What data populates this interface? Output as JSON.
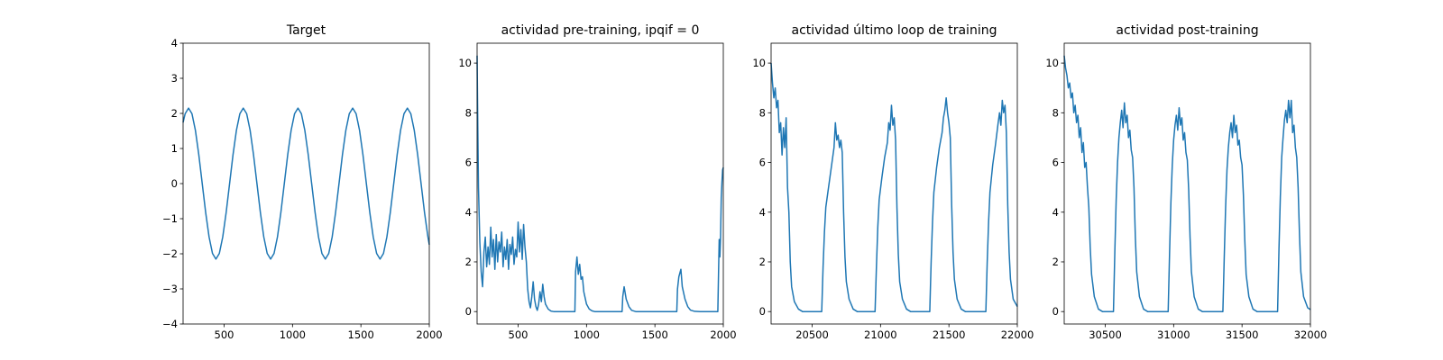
{
  "chart_data": [
    {
      "type": "line",
      "title": "Target",
      "color": "#1f77b4",
      "xlim": [
        200,
        2000
      ],
      "xticks": [
        500,
        1000,
        1500,
        2000
      ],
      "ylim": [
        -4,
        4
      ],
      "yticks": [
        {
          "value": -4,
          "label": "−4"
        },
        {
          "value": -3,
          "label": "−3"
        },
        {
          "value": -2,
          "label": "−2"
        },
        {
          "value": -1,
          "label": "−1"
        },
        0,
        1,
        2,
        3,
        4
      ],
      "x": [
        200,
        215,
        240,
        265,
        290,
        315,
        340,
        365,
        390,
        415,
        440,
        465,
        490,
        515,
        540,
        565,
        590,
        615,
        640,
        665,
        690,
        715,
        740,
        765,
        790,
        815,
        840,
        865,
        890,
        915,
        940,
        965,
        990,
        1015,
        1040,
        1065,
        1090,
        1115,
        1140,
        1165,
        1190,
        1215,
        1240,
        1265,
        1290,
        1315,
        1340,
        1365,
        1390,
        1415,
        1440,
        1465,
        1490,
        1515,
        1540,
        1565,
        1590,
        1615,
        1640,
        1665,
        1690,
        1715,
        1740,
        1765,
        1790,
        1815,
        1840,
        1865,
        1890,
        1915,
        1940,
        1965,
        1990,
        2000
      ],
      "values": [
        1.74,
        1.99,
        2.15,
        1.99,
        1.52,
        0.82,
        0,
        -0.82,
        -1.52,
        -1.99,
        -2.15,
        -1.99,
        -1.52,
        -0.82,
        0,
        0.82,
        1.52,
        1.99,
        2.15,
        1.99,
        1.52,
        0.82,
        0,
        -0.82,
        -1.52,
        -1.99,
        -2.15,
        -1.99,
        -1.52,
        -0.82,
        0,
        0.82,
        1.52,
        1.99,
        2.15,
        1.99,
        1.52,
        0.82,
        0,
        -0.82,
        -1.52,
        -1.99,
        -2.15,
        -1.99,
        -1.52,
        -0.82,
        0,
        0.82,
        1.52,
        1.99,
        2.15,
        1.99,
        1.52,
        0.82,
        0,
        -0.82,
        -1.52,
        -1.99,
        -2.15,
        -1.99,
        -1.52,
        -0.82,
        0,
        0.82,
        1.52,
        1.99,
        2.15,
        1.99,
        1.52,
        0.82,
        0,
        -0.82,
        -1.52,
        -1.74
      ]
    },
    {
      "type": "line",
      "title": "actividad pre-training, ipqif = 0",
      "color": "#1f77b4",
      "xlim": [
        200,
        2000
      ],
      "xticks": [
        500,
        1000,
        1500,
        2000
      ],
      "ylim": [
        -0.5,
        10.8
      ],
      "yticks": [
        0,
        2,
        4,
        6,
        8,
        10
      ],
      "x": [
        200,
        205,
        210,
        220,
        230,
        240,
        250,
        260,
        270,
        280,
        290,
        300,
        310,
        320,
        330,
        340,
        350,
        360,
        370,
        380,
        390,
        400,
        410,
        420,
        430,
        440,
        450,
        460,
        470,
        480,
        490,
        500,
        510,
        520,
        530,
        540,
        550,
        560,
        570,
        580,
        590,
        600,
        610,
        620,
        630,
        640,
        650,
        660,
        670,
        680,
        690,
        700,
        720,
        740,
        760,
        780,
        800,
        850,
        900,
        915,
        920,
        930,
        940,
        950,
        960,
        970,
        980,
        1000,
        1020,
        1040,
        1060,
        1080,
        1100,
        1150,
        1200,
        1260,
        1265,
        1275,
        1290,
        1310,
        1330,
        1360,
        1400,
        1500,
        1600,
        1660,
        1665,
        1675,
        1690,
        1700,
        1720,
        1740,
        1760,
        1790,
        1830,
        1900,
        1960,
        1965,
        1970,
        1975,
        1980,
        1985,
        1990,
        1995,
        2000
      ],
      "values": [
        10.3,
        7.5,
        5.0,
        2.8,
        1.6,
        1.0,
        2.4,
        3.0,
        1.8,
        2.6,
        1.9,
        3.4,
        2.2,
        2.9,
        1.7,
        3.1,
        2.0,
        2.8,
        2.4,
        3.2,
        1.8,
        2.6,
        2.1,
        2.9,
        1.7,
        2.7,
        2.3,
        3.0,
        1.9,
        2.5,
        2.2,
        3.6,
        2.4,
        3.3,
        2.1,
        3.5,
        2.6,
        2.0,
        0.9,
        0.4,
        0.15,
        0.6,
        1.2,
        0.5,
        0.2,
        0.05,
        0.3,
        0.8,
        0.4,
        1.1,
        0.6,
        0.3,
        0.1,
        0.02,
        0,
        0,
        0,
        0,
        0,
        0,
        1.6,
        2.2,
        1.5,
        1.9,
        1.3,
        1.4,
        0.8,
        0.3,
        0.1,
        0.03,
        0,
        0,
        0,
        0,
        0,
        0,
        0.6,
        1.0,
        0.5,
        0.2,
        0.05,
        0,
        0,
        0,
        0,
        0,
        0.9,
        1.4,
        1.7,
        1.0,
        0.5,
        0.2,
        0.06,
        0.01,
        0,
        0,
        0,
        1.5,
        2.9,
        2.2,
        3.0,
        4.6,
        5.2,
        5.7,
        5.8
      ]
    },
    {
      "type": "line",
      "title": "actividad último loop de training",
      "color": "#1f77b4",
      "xlim": [
        20200,
        22000
      ],
      "xticks": [
        20500,
        21000,
        21500,
        22000
      ],
      "ylim": [
        -0.5,
        10.8
      ],
      "yticks": [
        0,
        2,
        4,
        6,
        8,
        10
      ],
      "x": [
        20200,
        20210,
        20220,
        20230,
        20240,
        20250,
        20260,
        20270,
        20280,
        20290,
        20300,
        20310,
        20320,
        20330,
        20340,
        20350,
        20370,
        20400,
        20430,
        20570,
        20580,
        20590,
        20600,
        20620,
        20640,
        20660,
        20670,
        20680,
        20690,
        20700,
        20710,
        20720,
        20730,
        20740,
        20750,
        20770,
        20800,
        20830,
        20960,
        20970,
        20980,
        20990,
        21010,
        21030,
        21050,
        21060,
        21070,
        21080,
        21090,
        21100,
        21110,
        21120,
        21130,
        21140,
        21160,
        21190,
        21220,
        21360,
        21370,
        21380,
        21390,
        21410,
        21430,
        21450,
        21460,
        21470,
        21480,
        21490,
        21500,
        21510,
        21520,
        21530,
        21540,
        21560,
        21590,
        21620,
        21770,
        21780,
        21790,
        21800,
        21820,
        21840,
        21860,
        21870,
        21880,
        21890,
        21900,
        21910,
        21920,
        21930,
        21940,
        21950,
        21970,
        22000
      ],
      "values": [
        10.0,
        9.2,
        8.6,
        9.0,
        8.2,
        8.5,
        7.2,
        7.6,
        6.3,
        7.4,
        6.6,
        7.8,
        5.0,
        4.0,
        2.0,
        1.0,
        0.4,
        0.1,
        0,
        0,
        1.8,
        3.2,
        4.2,
        5.0,
        5.8,
        6.6,
        7.6,
        6.9,
        7.1,
        6.6,
        6.9,
        6.4,
        4.0,
        2.2,
        1.2,
        0.5,
        0.1,
        0,
        0,
        1.8,
        3.4,
        4.5,
        5.4,
        6.2,
        6.8,
        7.6,
        7.3,
        8.3,
        7.5,
        7.8,
        6.9,
        4.2,
        2.3,
        1.2,
        0.5,
        0.1,
        0,
        0,
        2.0,
        3.6,
        4.8,
        5.8,
        6.6,
        7.2,
        7.8,
        8.1,
        8.6,
        8.0,
        7.6,
        7.0,
        4.3,
        2.4,
        1.3,
        0.5,
        0.1,
        0,
        0,
        2.0,
        3.6,
        4.8,
        5.9,
        6.7,
        7.6,
        8.0,
        7.5,
        8.5,
        8.0,
        8.3,
        7.2,
        4.3,
        2.4,
        1.3,
        0.5,
        0.2
      ]
    },
    {
      "type": "line",
      "title": "actividad post-training",
      "color": "#1f77b4",
      "xlim": [
        30200,
        32000
      ],
      "xticks": [
        30500,
        31000,
        31500,
        32000
      ],
      "ylim": [
        -0.5,
        10.8
      ],
      "yticks": [
        0,
        2,
        4,
        6,
        8,
        10
      ],
      "x": [
        30200,
        30210,
        30220,
        30230,
        30240,
        30250,
        30260,
        30270,
        30280,
        30290,
        30300,
        30310,
        30320,
        30330,
        30340,
        30350,
        30360,
        30370,
        30380,
        30390,
        30400,
        30420,
        30450,
        30480,
        30560,
        30570,
        30580,
        30590,
        30600,
        30610,
        30620,
        30630,
        30640,
        30650,
        30660,
        30670,
        30680,
        30690,
        30700,
        30710,
        30720,
        30730,
        30750,
        30780,
        30810,
        30960,
        30970,
        30980,
        30990,
        31000,
        31010,
        31020,
        31030,
        31040,
        31050,
        31060,
        31070,
        31080,
        31090,
        31100,
        31110,
        31120,
        31130,
        31150,
        31180,
        31210,
        31360,
        31370,
        31380,
        31390,
        31400,
        31410,
        31420,
        31430,
        31440,
        31450,
        31460,
        31470,
        31480,
        31490,
        31500,
        31510,
        31520,
        31530,
        31550,
        31580,
        31610,
        31760,
        31770,
        31780,
        31790,
        31800,
        31810,
        31820,
        31830,
        31840,
        31850,
        31860,
        31870,
        31880,
        31890,
        31900,
        31910,
        31920,
        31930,
        31950,
        31980,
        32000
      ],
      "values": [
        10.3,
        9.8,
        9.5,
        9.0,
        9.2,
        8.6,
        8.8,
        8.0,
        8.3,
        7.6,
        7.9,
        7.0,
        7.4,
        6.4,
        6.8,
        5.8,
        6.0,
        5.0,
        4.2,
        2.6,
        1.5,
        0.6,
        0.1,
        0,
        0,
        2.4,
        4.5,
        6.0,
        7.0,
        7.6,
        8.1,
        7.4,
        8.4,
        7.6,
        7.9,
        7.0,
        7.3,
        6.5,
        6.2,
        5.0,
        3.0,
        1.6,
        0.6,
        0.1,
        0,
        0,
        2.3,
        4.4,
        5.9,
        6.9,
        7.5,
        7.9,
        7.3,
        8.2,
        7.5,
        7.8,
        6.9,
        7.2,
        6.4,
        6.1,
        4.9,
        3.0,
        1.6,
        0.6,
        0.1,
        0,
        0,
        2.2,
        4.2,
        5.7,
        6.6,
        7.2,
        7.6,
        7.0,
        7.9,
        7.2,
        7.5,
        6.7,
        6.9,
        6.2,
        5.9,
        4.7,
        2.9,
        1.5,
        0.6,
        0.1,
        0,
        0,
        2.5,
        4.6,
        6.2,
        7.0,
        7.7,
        8.1,
        7.6,
        8.5,
        7.8,
        8.5,
        7.2,
        7.5,
        6.6,
        6.2,
        5.0,
        3.1,
        1.6,
        0.6,
        0.15,
        0.08
      ]
    }
  ]
}
